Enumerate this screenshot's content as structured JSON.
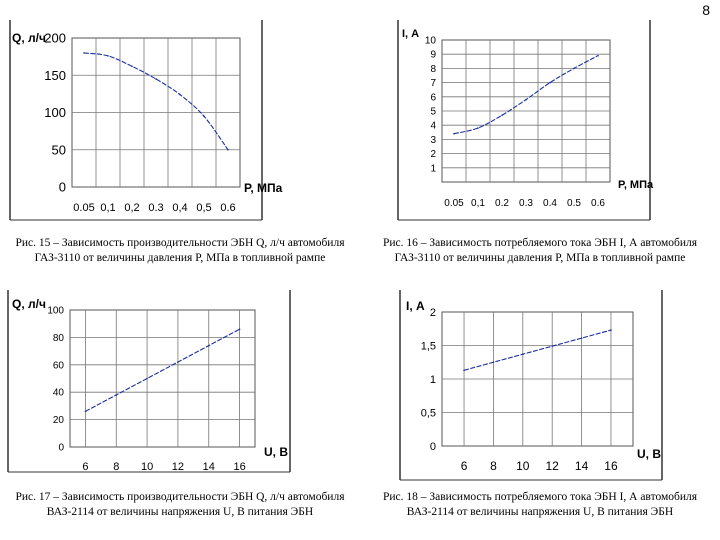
{
  "page_number": "8",
  "figures": [
    {
      "caption": "Рис. 15 – Зависимость производительности ЭБН Q, л/ч автомобиля ГАЗ-3110 от величины давления P, МПа в топливной рампе"
    },
    {
      "caption": "Рис. 16 – Зависимость потребляемого тока ЭБН I, А автомобиля ГАЗ-3110 от величины давления P, МПа в топливной рампе"
    },
    {
      "caption": "Рис. 17 – Зависимость производительности ЭБН Q, л/ч автомобиля ВАЗ-2114 от величины напряжения U, В питания ЭБН"
    },
    {
      "caption": "Рис. 18 – Зависимость потребляемого тока ЭБН I, А автомобиля ВАЗ-2114 от величины напряжения U, В питания ЭБН"
    }
  ],
  "chart_data": [
    {
      "type": "line",
      "ylabel": "Q, л/ч",
      "xlabel": "Р, МПа",
      "x_tick_labels": [
        "0.05",
        "0,1",
        "0,2",
        "0.3",
        "0,4",
        "0,5",
        "0.6"
      ],
      "y_tick_labels": [
        "0",
        "50",
        "100",
        "150",
        "200"
      ],
      "ylim": [
        0,
        200
      ],
      "x": [
        0.05,
        0.1,
        0.2,
        0.3,
        0.4,
        0.5,
        0.6
      ],
      "y": [
        180,
        176,
        162,
        145,
        124,
        95,
        50
      ]
    },
    {
      "type": "line",
      "ylabel": "I, А",
      "xlabel": "Р, МПа",
      "x_tick_labels": [
        "0.05",
        "0,1",
        "0.2",
        "0.3",
        "0.4",
        "0.5",
        "0.6"
      ],
      "y_tick_labels": [
        "1",
        "2",
        "3",
        "4",
        "5",
        "6",
        "7",
        "8",
        "9",
        "10"
      ],
      "ylim": [
        0,
        10
      ],
      "x": [
        0.05,
        0.1,
        0.2,
        0.3,
        0.4,
        0.5,
        0.6
      ],
      "y": [
        3.4,
        3.8,
        4.7,
        5.8,
        7.0,
        8.0,
        8.9
      ]
    },
    {
      "type": "line",
      "ylabel": "Q, л/ч",
      "xlabel": "U, В",
      "x_tick_labels": [
        "6",
        "8",
        "10",
        "12",
        "14",
        "16"
      ],
      "y_tick_labels": [
        "0",
        "20",
        "40",
        "60",
        "80",
        "100"
      ],
      "ylim": [
        0,
        100
      ],
      "x": [
        6,
        8,
        10,
        12,
        14,
        16
      ],
      "y": [
        26,
        38,
        50,
        62,
        74,
        86
      ]
    },
    {
      "type": "line",
      "ylabel": "I, А",
      "xlabel": "U, В",
      "x_tick_labels": [
        "6",
        "8",
        "10",
        "12",
        "14",
        "16"
      ],
      "y_tick_labels": [
        "0",
        "0,5",
        "1",
        "1,5",
        "2"
      ],
      "ylim": [
        0,
        2
      ],
      "x": [
        6,
        8,
        10,
        12,
        14,
        16
      ],
      "y": [
        1.13,
        1.25,
        1.37,
        1.49,
        1.61,
        1.73
      ]
    }
  ]
}
